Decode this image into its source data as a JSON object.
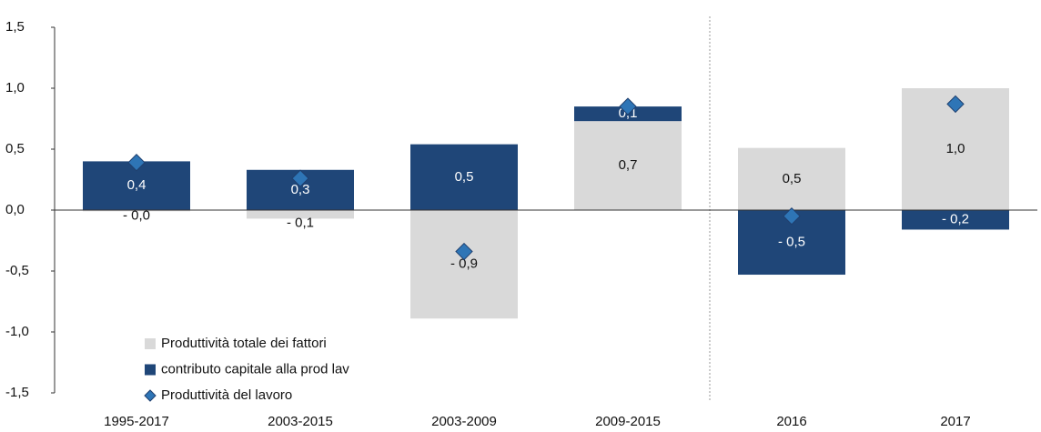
{
  "chart_data": {
    "type": "bar",
    "categories": [
      "1995-2017",
      "2003-2015",
      "2003-2009",
      "2009-2015",
      "2016",
      "2017"
    ],
    "series": [
      {
        "name": "Produttività totale dei fattori",
        "type": "bar",
        "color": "#d9d9d9",
        "label_color": "#111111",
        "values": [
          -0.01,
          -0.07,
          -0.89,
          0.73,
          0.51,
          1.0
        ],
        "value_labels": [
          "- 0,0",
          "- 0,1",
          "- 0,9",
          "0,7",
          "0,5",
          "1,0"
        ]
      },
      {
        "name": "contributo capitale alla prod lav",
        "type": "bar",
        "color": "#1f4678",
        "label_color": "#ffffff",
        "values": [
          0.4,
          0.33,
          0.54,
          0.12,
          -0.53,
          -0.16
        ],
        "value_labels": [
          "0,4",
          "0,3",
          "0,5",
          "0,1",
          "- 0,5",
          "- 0,2"
        ]
      },
      {
        "name": "Produttività del lavoro",
        "type": "scatter",
        "color": "#2e75b6",
        "values": [
          0.39,
          0.26,
          -0.34,
          0.85,
          -0.05,
          0.87
        ]
      }
    ],
    "ylim": [
      -1.5,
      1.5
    ],
    "yticks": [
      {
        "value": -1.5,
        "label": "-1,5"
      },
      {
        "value": -1,
        "label": "-1,0"
      },
      {
        "value": -0.5,
        "label": "-0,5"
      },
      {
        "value": 0,
        "label": "0,0"
      },
      {
        "value": 0.5,
        "label": "0,5"
      },
      {
        "value": 1,
        "label": "1,0"
      },
      {
        "value": 1.5,
        "label": "1,5"
      }
    ],
    "legend": "lower left"
  }
}
